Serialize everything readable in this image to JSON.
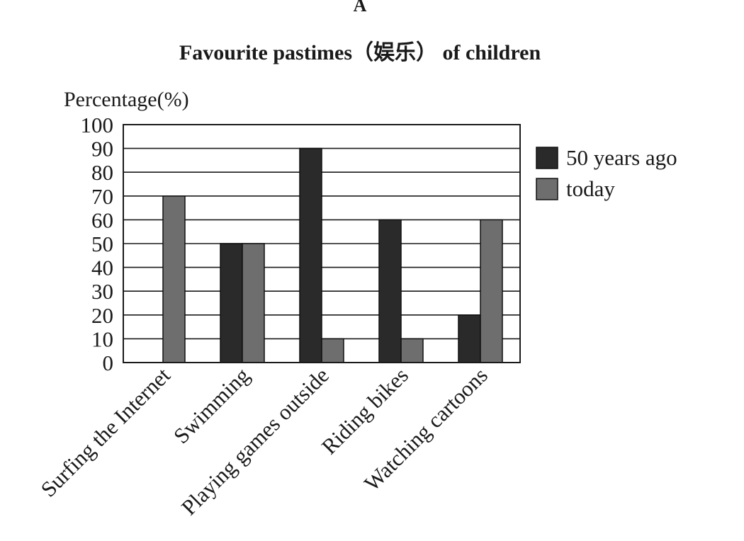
{
  "header_letter": "A",
  "chart_data": {
    "type": "bar",
    "title": "Favourite pastimes（娱乐） of children",
    "ylabel": "Percentage(%)",
    "xlabel": "",
    "categories": [
      "Surfing the Internet",
      "Swimming",
      "Playing games outside",
      "Riding bikes",
      "Watching cartoons"
    ],
    "series": [
      {
        "name": "50 years ago",
        "values": [
          0,
          50,
          90,
          60,
          20
        ],
        "color": "#2a2a2a"
      },
      {
        "name": "today",
        "values": [
          70,
          50,
          10,
          10,
          60
        ],
        "color": "#6e6e6e"
      }
    ],
    "ylim": [
      0,
      100
    ],
    "yticks": [
      "0",
      "10",
      "20",
      "30",
      "40",
      "50",
      "60",
      "70",
      "80",
      "90",
      "100"
    ],
    "grid": true,
    "legend_position": "right"
  }
}
